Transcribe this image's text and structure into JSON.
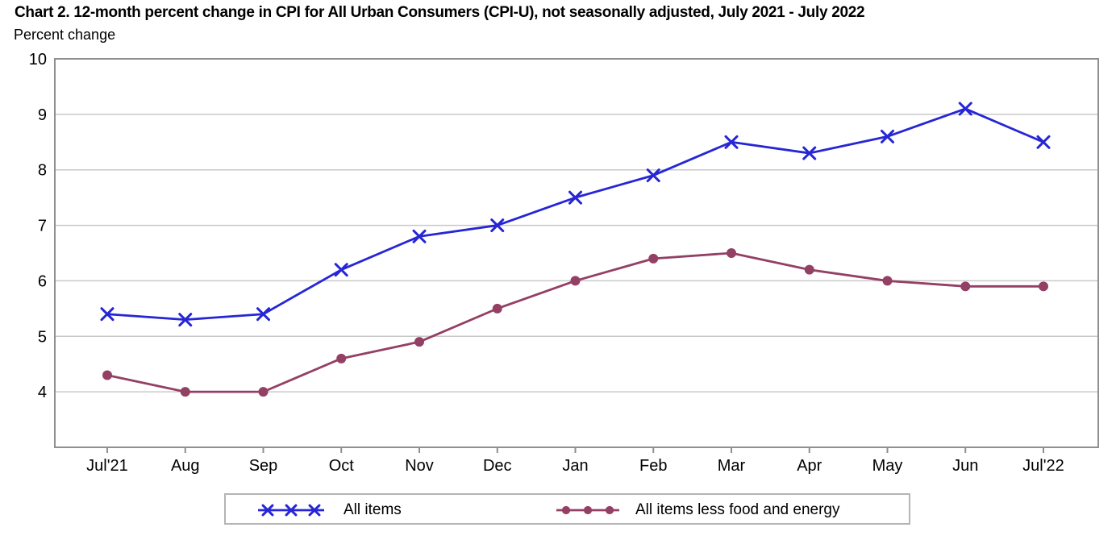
{
  "page": {
    "title": "Chart 2. 12-month percent change in CPI for All Urban Consumers (CPI-U), not seasonally adjusted, July 2021 - July 2022",
    "y_axis_caption": "Percent change"
  },
  "chart_data": {
    "type": "line",
    "title": "Chart 2. 12-month percent change in CPI for All Urban Consumers (CPI-U), not seasonally adjusted, July 2021 - July 2022",
    "ylabel": "Percent change",
    "xlabel": "",
    "categories": [
      "Jul'21",
      "Aug",
      "Sep",
      "Oct",
      "Nov",
      "Dec",
      "Jan",
      "Feb",
      "Mar",
      "Apr",
      "May",
      "Jun",
      "Jul'22"
    ],
    "series": [
      {
        "name": "All items",
        "marker": "x",
        "color": "#2626d6",
        "values": [
          5.4,
          5.3,
          5.4,
          6.2,
          6.8,
          7.0,
          7.5,
          7.9,
          8.5,
          8.3,
          8.6,
          9.1,
          8.5
        ]
      },
      {
        "name": "All items less food and energy",
        "marker": "circle",
        "color": "#943f64",
        "values": [
          4.3,
          4.0,
          4.0,
          4.6,
          4.9,
          5.5,
          6.0,
          6.4,
          6.5,
          6.2,
          6.0,
          5.9,
          5.9
        ]
      }
    ],
    "ylim": [
      3,
      10
    ],
    "yticks": [
      4,
      5,
      6,
      7,
      8,
      9,
      10
    ],
    "grid": true,
    "legend_position": "bottom",
    "colors": {
      "grid": "#c9c9c9",
      "frame": "#8f8f8f",
      "text": "#000000",
      "legend_border": "#b5b5b5"
    }
  }
}
